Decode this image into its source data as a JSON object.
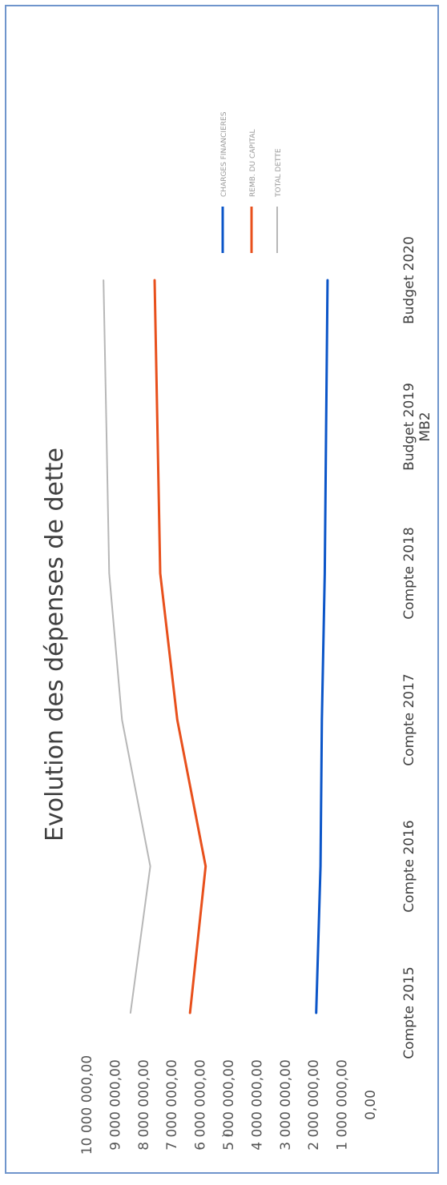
{
  "chart_data": {
    "type": "line",
    "title": "Evolution des dépenses de dette",
    "xlabel": "",
    "ylabel": "",
    "categories": [
      [
        "Compte 2015"
      ],
      [
        "Compte 2016"
      ],
      [
        "Compte 2017"
      ],
      [
        "Compte 2018"
      ],
      [
        "Budget 2019",
        "MB2"
      ],
      [
        "Budget 2020"
      ]
    ],
    "ylim": [
      0,
      10000000
    ],
    "y_ticks": [
      "0,00",
      "1 000 000,00",
      "2 000 000,00",
      "3 000 000,00",
      "4 000 000,00",
      "5 000 000,00",
      "6 000 000,00",
      "7 000 000,00",
      "8 000 000,00",
      "9 000 000,00",
      "10 000 000,00"
    ],
    "stray_mark": ")",
    "grid": false,
    "legend_position": "right",
    "orientation": "rotated 90° counter-clockwise",
    "series": [
      {
        "name": "CHARGES FINANCIERES",
        "color": "#0b55c8",
        "values": [
          1900000,
          1750000,
          1700000,
          1600000,
          1550000,
          1500000
        ]
      },
      {
        "name": "REMB. DU CAPITAL",
        "color": "#e8501c",
        "values": [
          6350000,
          5800000,
          6800000,
          7400000,
          7500000,
          7600000
        ]
      },
      {
        "name": "TOTAL DETTE",
        "color": "#b7b7b7",
        "values": [
          8450000,
          7750000,
          8750000,
          9200000,
          9300000,
          9400000
        ]
      }
    ]
  }
}
